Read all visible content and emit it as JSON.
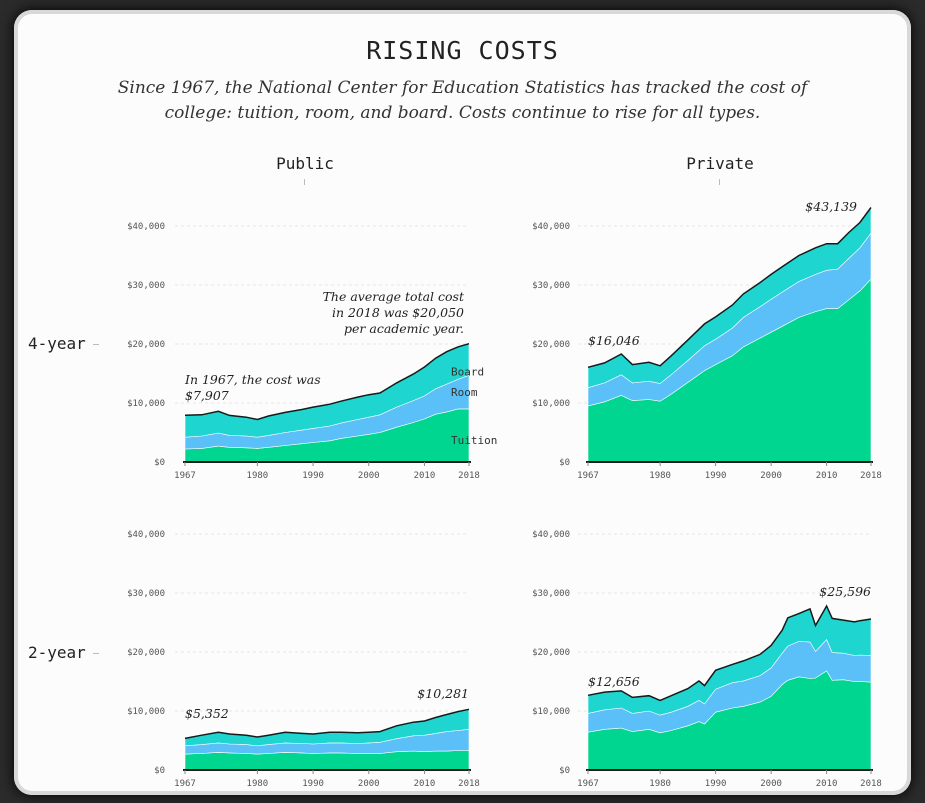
{
  "title": "RISING COSTS",
  "subtitle": "Since 1967, the National Center for Education Statistics has tracked the cost of college: tuition, room, and board. Costs continue to rise for all types.",
  "columns": [
    "Public",
    "Private"
  ],
  "rows": [
    "4-year",
    "2-year"
  ],
  "colors": {
    "tuition": "#00d68f",
    "room": "#5bc0f8",
    "board": "#1ed6cf",
    "outline": "#1a1a1a",
    "grid": "#e6e6e6"
  },
  "chart_data": [
    {
      "type": "area",
      "id": "public-4yr",
      "xlim": [
        1967,
        2018
      ],
      "ylim": [
        0,
        40000
      ],
      "x_ticks": [
        "1967",
        "1980",
        "1990",
        "2000",
        "2010",
        "2018"
      ],
      "y_ticks": [
        "$0",
        "$10,000",
        "$20,000",
        "$30,000",
        "$40,000"
      ],
      "stacked": true,
      "x": [
        1967,
        1970,
        1973,
        1975,
        1978,
        1980,
        1982,
        1985,
        1988,
        1990,
        1993,
        1995,
        1998,
        2000,
        2002,
        2005,
        2008,
        2010,
        2012,
        2014,
        2016,
        2018
      ],
      "series": [
        {
          "name": "Tuition",
          "values": [
            2200,
            2300,
            2700,
            2500,
            2400,
            2300,
            2500,
            2800,
            3100,
            3300,
            3600,
            4000,
            4400,
            4700,
            5000,
            5900,
            6700,
            7300,
            8100,
            8500,
            9000,
            9000
          ]
        },
        {
          "name": "Room",
          "values": [
            2000,
            2100,
            2200,
            2000,
            2000,
            1900,
            2000,
            2200,
            2300,
            2400,
            2500,
            2600,
            2800,
            2900,
            3000,
            3400,
            3700,
            3900,
            4300,
            4700,
            5000,
            5700
          ]
        },
        {
          "name": "Board",
          "values": [
            3707,
            3600,
            3700,
            3400,
            3200,
            3000,
            3300,
            3400,
            3500,
            3600,
            3700,
            3700,
            3800,
            3800,
            3700,
            4100,
            4500,
            4900,
            5200,
            5500,
            5500,
            5350
          ]
        }
      ],
      "series_labels_shown": [
        "Board",
        "Room",
        "Tuition"
      ],
      "annotations": [
        {
          "lines": [
            "In 1967, the cost was",
            "$7,907"
          ],
          "anchor": "start"
        },
        {
          "lines": [
            "The average total cost",
            "in 2018 was $20,050",
            "per academic year."
          ],
          "anchor": "end"
        }
      ]
    },
    {
      "type": "area",
      "id": "private-4yr",
      "xlim": [
        1967,
        2018
      ],
      "ylim": [
        0,
        40000
      ],
      "x_ticks": [
        "1967",
        "1980",
        "1990",
        "2000",
        "2010",
        "2018"
      ],
      "y_ticks": [
        "$0",
        "$10,000",
        "$20,000",
        "$30,000",
        "$40,000"
      ],
      "stacked": true,
      "x": [
        1967,
        1970,
        1973,
        1975,
        1978,
        1980,
        1982,
        1985,
        1988,
        1990,
        1993,
        1995,
        1998,
        2000,
        2002,
        2005,
        2008,
        2010,
        2012,
        2014,
        2016,
        2018
      ],
      "series": [
        {
          "name": "Tuition",
          "values": [
            9500,
            10200,
            11300,
            10400,
            10600,
            10300,
            11500,
            13500,
            15500,
            16500,
            18000,
            19500,
            21000,
            22000,
            23000,
            24500,
            25500,
            26000,
            26000,
            27500,
            29000,
            31000
          ]
        },
        {
          "name": "Room",
          "values": [
            3100,
            3200,
            3500,
            3000,
            3100,
            3000,
            3300,
            3700,
            4200,
            4300,
            4700,
            5000,
            5300,
            5600,
            5800,
            6100,
            6300,
            6500,
            6700,
            7000,
            7300,
            7800
          ]
        },
        {
          "name": "Board",
          "values": [
            3446,
            3400,
            3500,
            3100,
            3200,
            3000,
            3200,
            3500,
            3700,
            3800,
            3900,
            4000,
            4100,
            4200,
            4300,
            4400,
            4500,
            4500,
            4300,
            4400,
            4300,
            4339
          ]
        }
      ],
      "annotations": [
        {
          "lines": [
            "$16,046"
          ],
          "anchor": "start"
        },
        {
          "lines": [
            "$43,139"
          ],
          "anchor": "end"
        }
      ]
    },
    {
      "type": "area",
      "id": "public-2yr",
      "xlim": [
        1967,
        2018
      ],
      "ylim": [
        0,
        40000
      ],
      "x_ticks": [
        "1967",
        "1980",
        "1990",
        "2000",
        "2010",
        "2018"
      ],
      "y_ticks": [
        "$0",
        "$10,000",
        "$20,000",
        "$30,000",
        "$40,000"
      ],
      "stacked": true,
      "x": [
        1967,
        1970,
        1973,
        1975,
        1978,
        1980,
        1982,
        1985,
        1988,
        1990,
        1993,
        1995,
        1998,
        2000,
        2002,
        2005,
        2008,
        2010,
        2012,
        2014,
        2016,
        2018
      ],
      "series": [
        {
          "name": "Tuition",
          "values": [
            2700,
            2800,
            3000,
            2900,
            2800,
            2700,
            2800,
            3000,
            2900,
            2800,
            2900,
            2900,
            2800,
            2800,
            2800,
            3100,
            3200,
            3100,
            3200,
            3200,
            3300,
            3300
          ]
        },
        {
          "name": "Room",
          "values": [
            1400,
            1500,
            1600,
            1500,
            1500,
            1400,
            1500,
            1600,
            1600,
            1600,
            1700,
            1700,
            1700,
            1800,
            1900,
            2200,
            2600,
            2800,
            3000,
            3300,
            3400,
            3600
          ]
        },
        {
          "name": "Board",
          "values": [
            1252,
            1600,
            1800,
            1700,
            1600,
            1500,
            1600,
            1800,
            1700,
            1700,
            1800,
            1800,
            1800,
            1800,
            1800,
            2200,
            2300,
            2400,
            2700,
            2900,
            3200,
            3381
          ]
        }
      ],
      "annotations": [
        {
          "lines": [
            "$5,352"
          ],
          "anchor": "start"
        },
        {
          "lines": [
            "$10,281"
          ],
          "anchor": "end"
        }
      ]
    },
    {
      "type": "area",
      "id": "private-2yr",
      "xlim": [
        1967,
        2018
      ],
      "ylim": [
        0,
        40000
      ],
      "x_ticks": [
        "1967",
        "1980",
        "1990",
        "2000",
        "2010",
        "2018"
      ],
      "y_ticks": [
        "$0",
        "$10,000",
        "$20,000",
        "$30,000",
        "$40,000"
      ],
      "stacked": true,
      "x": [
        1967,
        1970,
        1973,
        1975,
        1978,
        1980,
        1982,
        1985,
        1987,
        1988,
        1990,
        1993,
        1995,
        1998,
        2000,
        2002,
        2003,
        2005,
        2007,
        2008,
        2010,
        2011,
        2013,
        2015,
        2016,
        2018
      ],
      "series": [
        {
          "name": "Tuition",
          "values": [
            6400,
            6900,
            7100,
            6500,
            6900,
            6300,
            6700,
            7500,
            8200,
            7800,
            9800,
            10500,
            10800,
            11500,
            12500,
            14500,
            15200,
            15800,
            15500,
            15600,
            16800,
            15200,
            15300,
            15000,
            15000,
            14900
          ]
        },
        {
          "name": "Room",
          "values": [
            3200,
            3300,
            3400,
            3100,
            3100,
            3000,
            3100,
            3300,
            3600,
            3400,
            3900,
            4300,
            4300,
            4500,
            4800,
            5300,
            5800,
            6000,
            6200,
            4500,
            5300,
            4700,
            4500,
            4400,
            4500,
            4500
          ]
        },
        {
          "name": "Board",
          "values": [
            3056,
            3000,
            2900,
            2700,
            2600,
            2500,
            2800,
            3000,
            3300,
            3100,
            3200,
            3100,
            3400,
            3600,
            3800,
            3900,
            4800,
            4700,
            5600,
            4400,
            5700,
            5800,
            5600,
            5700,
            5800,
            6196
          ]
        }
      ],
      "annotations": [
        {
          "lines": [
            "$12,656"
          ],
          "anchor": "start"
        },
        {
          "lines": [
            "$25,596"
          ],
          "anchor": "end"
        }
      ]
    }
  ]
}
